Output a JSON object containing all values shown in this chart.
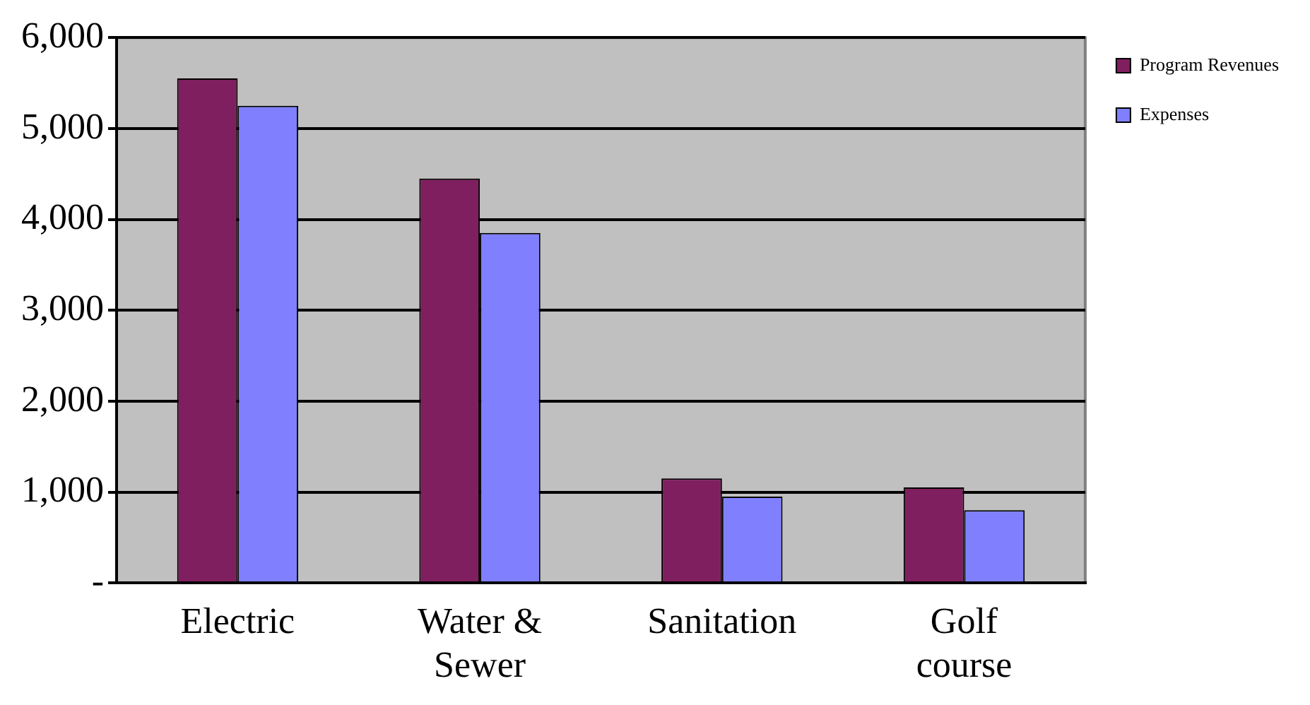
{
  "chart_data": {
    "type": "bar",
    "categories": [
      "Electric",
      "Water & Sewer",
      "Sanitation",
      "Golf course"
    ],
    "series": [
      {
        "name": "Program Revenues",
        "color": "#7f1f5f",
        "values": [
          5550,
          4450,
          1150,
          1050
        ]
      },
      {
        "name": "Expenses",
        "color": "#8080ff",
        "values": [
          5250,
          3850,
          950,
          800
        ]
      }
    ],
    "ylim": [
      0,
      6000
    ],
    "yticks": [
      {
        "value": 0,
        "label": "-"
      },
      {
        "value": 1000,
        "label": "1,000"
      },
      {
        "value": 2000,
        "label": "2,000"
      },
      {
        "value": 3000,
        "label": "3,000"
      },
      {
        "value": 4000,
        "label": "4,000"
      },
      {
        "value": 5000,
        "label": "5,000"
      },
      {
        "value": 6000,
        "label": "6,000"
      }
    ],
    "grid": "y",
    "legend": "right"
  }
}
